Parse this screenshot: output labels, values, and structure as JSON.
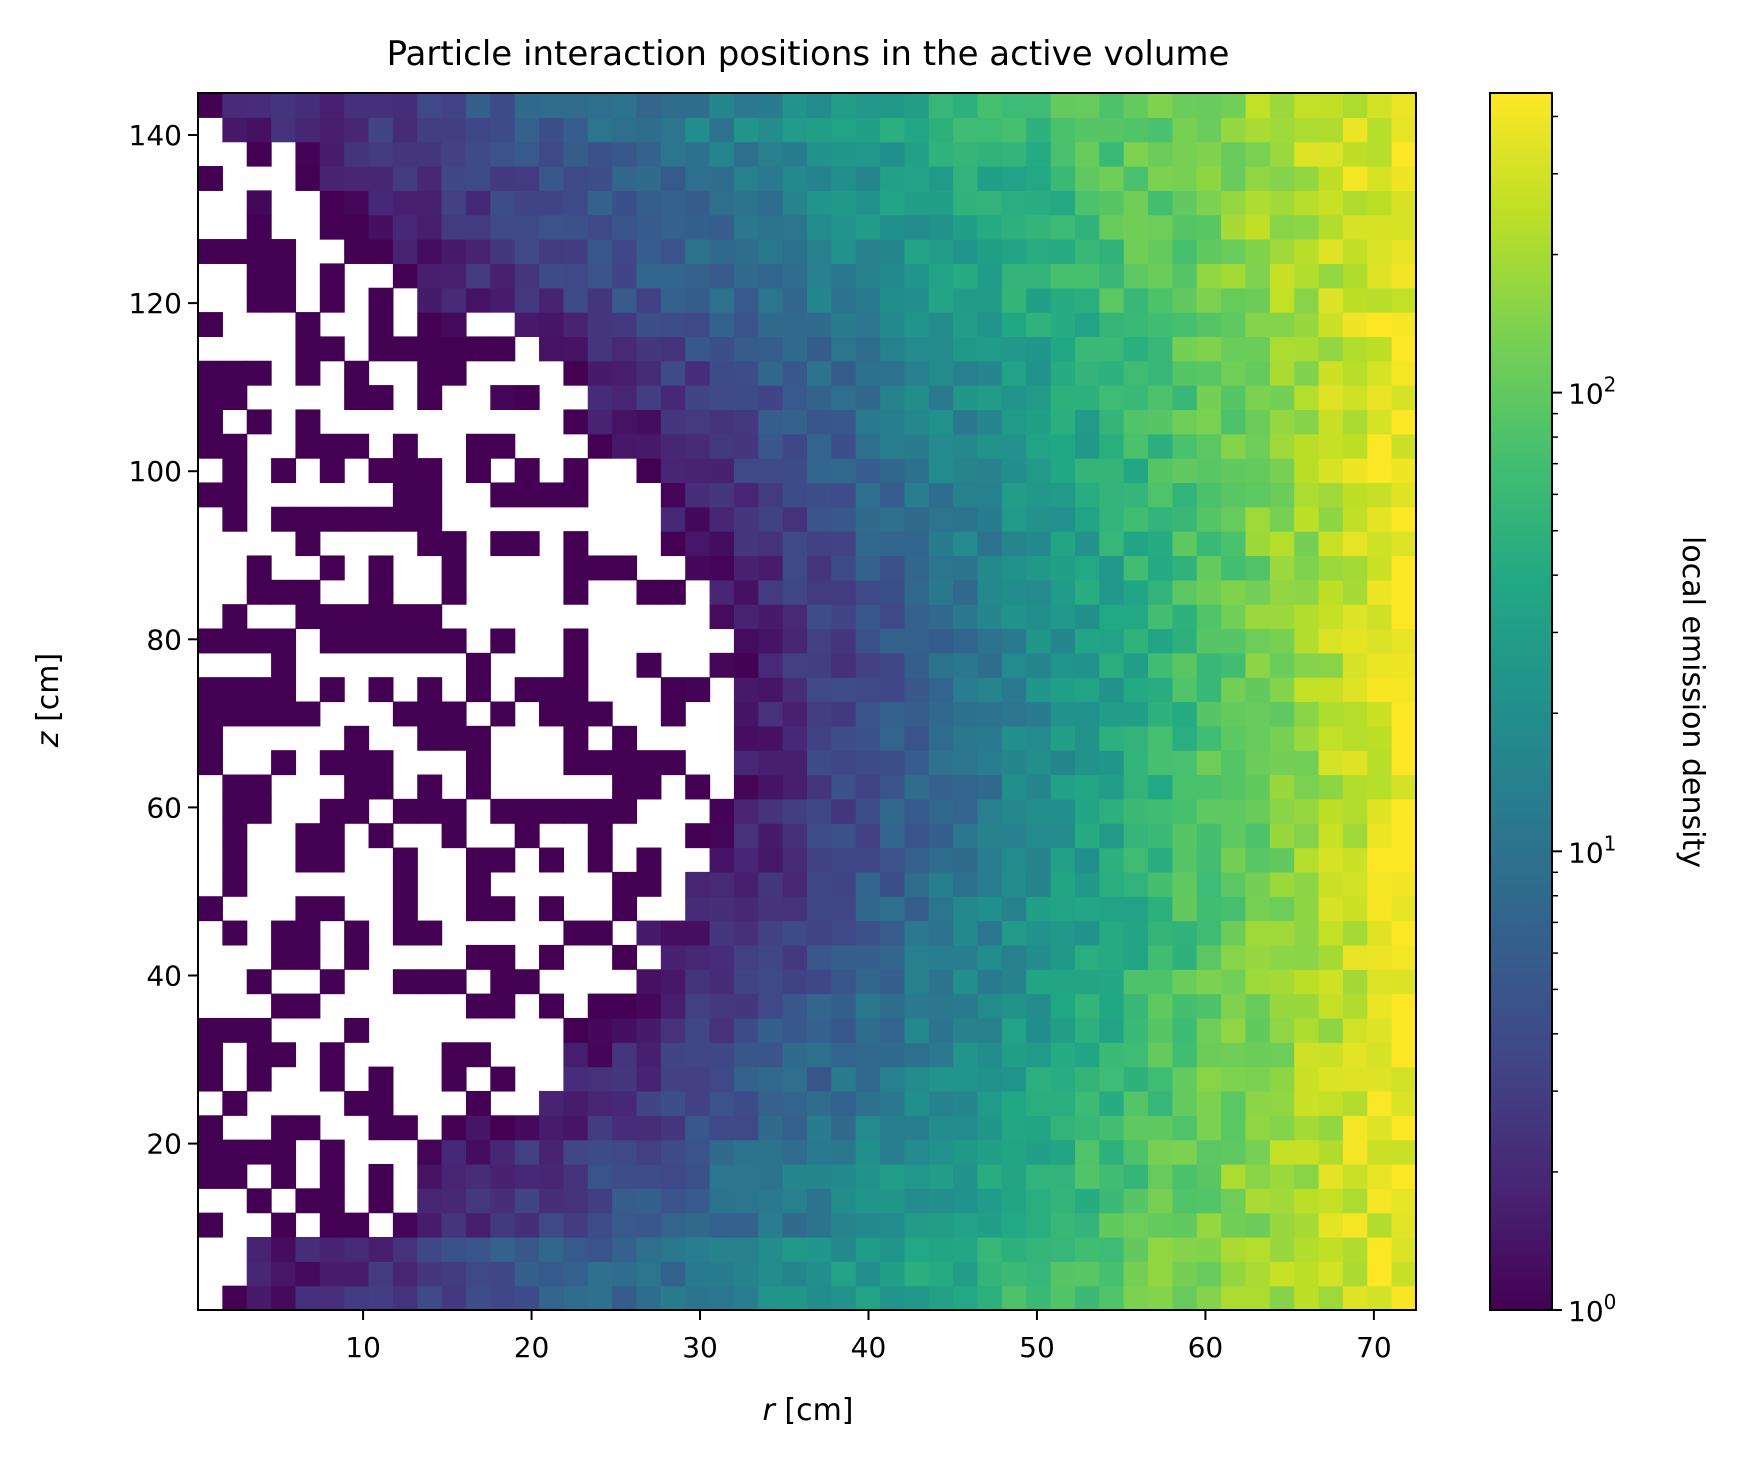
{
  "chart_data": {
    "type": "heatmap",
    "title": "Particle interaction positions in the active volume",
    "xlabel_var": "r",
    "xlabel_unit": " [cm]",
    "ylabel_var": "z",
    "ylabel_unit": " [cm]",
    "colorbar_label": "local emission density",
    "colorbar_scale": "log",
    "colorbar_range": [
      1,
      450
    ],
    "colormap": "viridis",
    "xlim": [
      0.2,
      72.5
    ],
    "ylim": [
      0.2,
      145.0
    ],
    "x_bins": 50,
    "y_bins": 50,
    "xticks": [
      10,
      20,
      30,
      40,
      50,
      60,
      70
    ],
    "xtick_labels": [
      "10",
      "20",
      "30",
      "40",
      "50",
      "60",
      "70"
    ],
    "yticks": [
      20,
      40,
      60,
      80,
      100,
      120,
      140
    ],
    "ytick_labels": [
      "20",
      "40",
      "60",
      "80",
      "100",
      "120",
      "140"
    ],
    "cbar_tick_labels": [
      {
        "base": "10",
        "exp": "0"
      },
      {
        "base": "10",
        "exp": "1"
      },
      {
        "base": "10",
        "exp": "2"
      }
    ],
    "density_model": {
      "description": "counts grow roughly exponentially with r; sparse region (empty bins) at small r and mid z",
      "max_value": 450
    }
  }
}
